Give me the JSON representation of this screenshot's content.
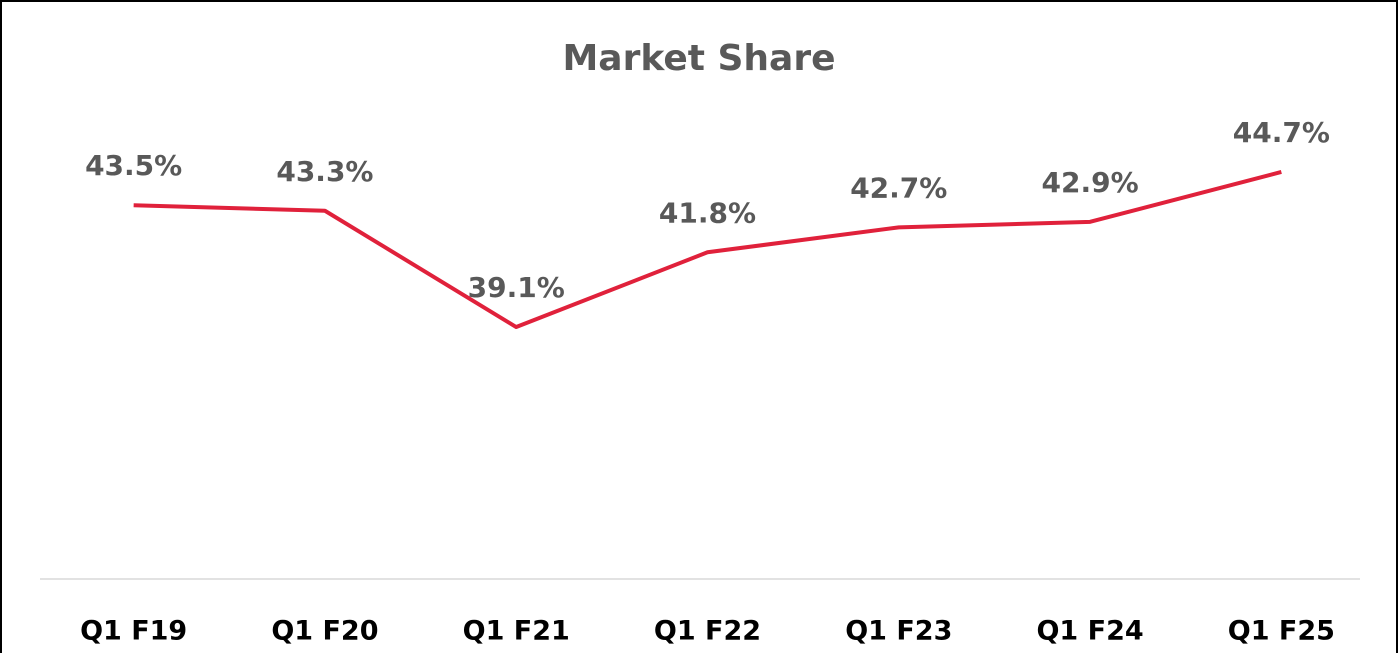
{
  "chart_data": {
    "type": "line",
    "title": "Market Share",
    "categories": [
      "Q1 F19",
      "Q1 F20",
      "Q1 F21",
      "Q1 F22",
      "Q1 F23",
      "Q1 F24",
      "Q1 F25"
    ],
    "series": [
      {
        "name": "Market Share",
        "color": "#e0213b",
        "values": [
          43.5,
          43.3,
          39.1,
          41.8,
          42.7,
          42.9,
          44.7
        ],
        "value_labels": [
          "43.5%",
          "43.3%",
          "39.1%",
          "41.8%",
          "42.7%",
          "42.9%",
          "44.7%"
        ]
      }
    ],
    "ylim": [
      30,
      46
    ]
  }
}
